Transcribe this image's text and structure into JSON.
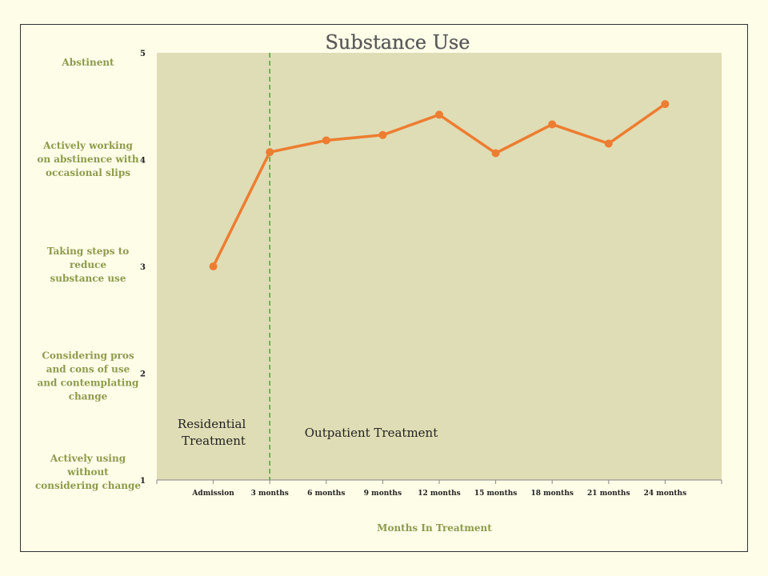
{
  "chart_data": {
    "type": "line",
    "title": "Substance Use",
    "xlabel": "Months In Treatment",
    "categories": [
      "Admission",
      "3 months",
      "6 months",
      "9 months",
      "12 months",
      "15 months",
      "18 months",
      "21 months",
      "24 months"
    ],
    "series": [
      {
        "values": [
          3.0,
          4.07,
          4.18,
          4.23,
          4.42,
          4.06,
          4.33,
          4.15,
          4.52
        ]
      }
    ],
    "ylim": [
      1,
      5
    ],
    "yticks": [
      1,
      2,
      3,
      4,
      5
    ],
    "y_level_labels": [
      "Actively using without considering change",
      "Considering pros and cons of use and contemplating change",
      "Taking steps to reduce substance use",
      "Actively working on abstinence with occasional slips",
      "Abstinent"
    ],
    "divider_after_category": "3 months",
    "annotations": [
      "Residential Treatment",
      "Outpatient Treatment"
    ],
    "grid": false,
    "colors": {
      "line": "#ed7d31",
      "plot_background": "#dfddb5",
      "page_background": "#fefde8",
      "level_label": "#8e9a4c",
      "divider": "#5a9a3c"
    }
  }
}
